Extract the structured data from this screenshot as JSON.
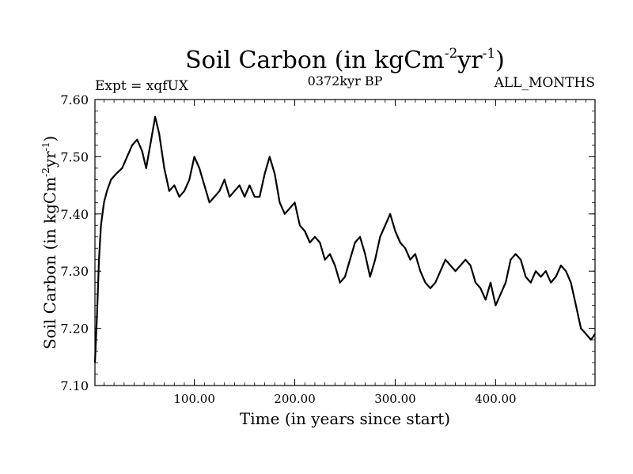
{
  "chart_data": {
    "type": "line",
    "title": "Soil Carbon (in kgCm",
    "title_sup1": "-2",
    "title_mid": "yr",
    "title_sup2": "-1",
    "title_end": ")",
    "subtitle_left": "Expt = xqfUX",
    "subtitle_center": "0372kyr BP",
    "subtitle_right": "ALL_MONTHS",
    "xlabel": "Time (in years since start)",
    "ylabel": "Soil Carbon (in kgCm",
    "ylabel_sup1": "-2",
    "ylabel_mid": "yr",
    "ylabel_sup2": "-1",
    "ylabel_end": ")",
    "xlim": [
      1,
      499
    ],
    "ylim": [
      7.1,
      7.6
    ],
    "xticks": [
      100,
      200,
      300,
      400
    ],
    "xtick_labels": [
      "100.00",
      "200.00",
      "300.00",
      "400.00"
    ],
    "yticks": [
      7.1,
      7.2,
      7.3,
      7.4,
      7.5,
      7.6
    ],
    "ytick_labels": [
      "7.10",
      "7.20",
      "7.30",
      "7.40",
      "7.50",
      "7.60"
    ],
    "series": [
      {
        "name": "Soil Carbon",
        "x": [
          1,
          3,
          5,
          7,
          10,
          13,
          17,
          22,
          28,
          33,
          38,
          43,
          48,
          52,
          57,
          61,
          65,
          70,
          75,
          80,
          85,
          90,
          95,
          100,
          105,
          110,
          115,
          120,
          125,
          130,
          135,
          140,
          145,
          150,
          155,
          160,
          165,
          170,
          175,
          180,
          185,
          190,
          195,
          200,
          205,
          210,
          215,
          220,
          225,
          230,
          235,
          240,
          245,
          250,
          255,
          260,
          265,
          270,
          275,
          280,
          285,
          290,
          295,
          300,
          305,
          310,
          315,
          320,
          325,
          330,
          335,
          340,
          345,
          350,
          355,
          360,
          365,
          370,
          375,
          380,
          385,
          390,
          395,
          400,
          405,
          410,
          415,
          420,
          425,
          430,
          435,
          440,
          445,
          450,
          455,
          460,
          465,
          470,
          475,
          480,
          485,
          490,
          495,
          499
        ],
        "y": [
          7.14,
          7.22,
          7.32,
          7.38,
          7.42,
          7.44,
          7.46,
          7.47,
          7.48,
          7.5,
          7.52,
          7.53,
          7.51,
          7.48,
          7.53,
          7.57,
          7.54,
          7.48,
          7.44,
          7.45,
          7.43,
          7.44,
          7.46,
          7.5,
          7.48,
          7.45,
          7.42,
          7.43,
          7.44,
          7.46,
          7.43,
          7.44,
          7.45,
          7.43,
          7.45,
          7.43,
          7.43,
          7.47,
          7.5,
          7.47,
          7.42,
          7.4,
          7.41,
          7.42,
          7.38,
          7.37,
          7.35,
          7.36,
          7.35,
          7.32,
          7.33,
          7.31,
          7.28,
          7.29,
          7.32,
          7.35,
          7.36,
          7.33,
          7.29,
          7.32,
          7.36,
          7.38,
          7.4,
          7.37,
          7.35,
          7.34,
          7.32,
          7.33,
          7.3,
          7.28,
          7.27,
          7.28,
          7.3,
          7.32,
          7.31,
          7.3,
          7.31,
          7.32,
          7.31,
          7.28,
          7.27,
          7.25,
          7.28,
          7.24,
          7.26,
          7.28,
          7.32,
          7.33,
          7.32,
          7.29,
          7.28,
          7.3,
          7.29,
          7.3,
          7.28,
          7.29,
          7.31,
          7.3,
          7.28,
          7.24,
          7.2,
          7.19,
          7.18,
          7.19
        ]
      }
    ]
  }
}
